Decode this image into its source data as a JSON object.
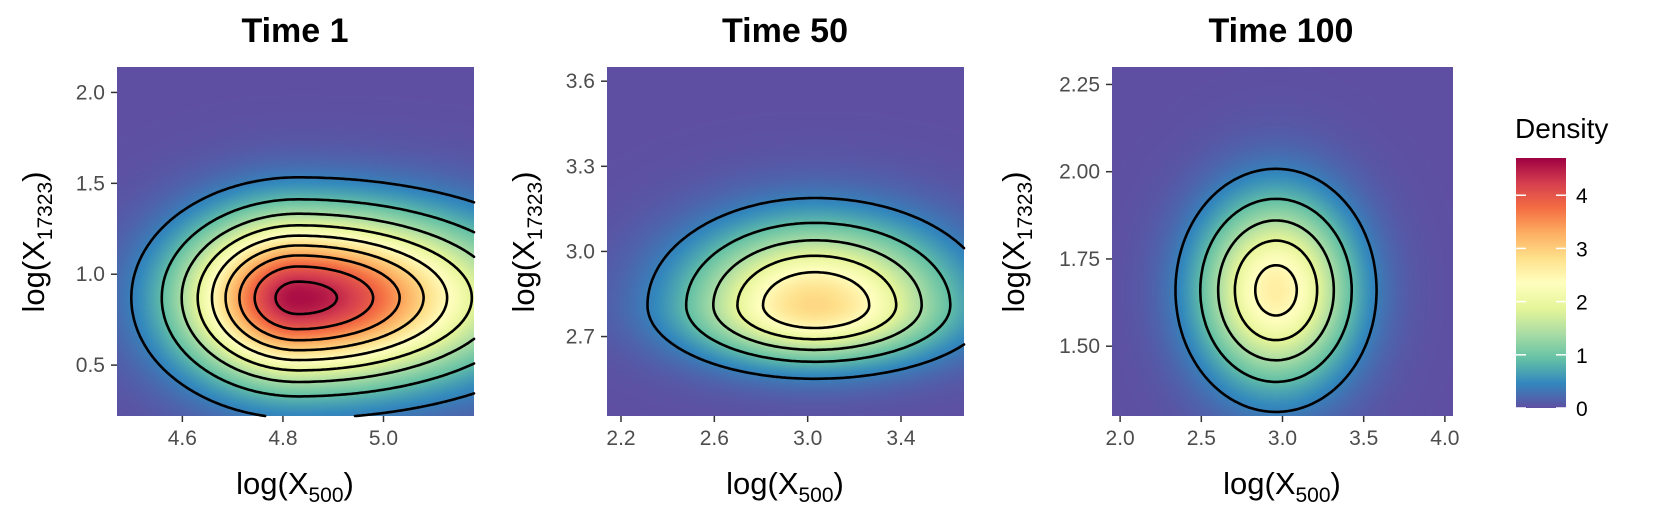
{
  "chart_data": [
    {
      "type": "heatmap",
      "title": "Time 1",
      "xlabel": {
        "base": "log(X",
        "sub": "500",
        "close": ")"
      },
      "ylabel": {
        "base": "log(X",
        "sub": "17323",
        "close": ")"
      },
      "xlim": [
        4.47,
        5.18
      ],
      "ylim": [
        0.22,
        2.14
      ],
      "xticks": [
        4.6,
        4.8,
        5.0
      ],
      "xtick_labels": [
        "4.6",
        "4.8",
        "5.0"
      ],
      "yticks": [
        0.5,
        1.0,
        1.5,
        2.0
      ],
      "ytick_labels": [
        "0.5",
        "1.0",
        "1.5",
        "2.0"
      ],
      "peak": {
        "x": 4.83,
        "y": 0.87,
        "density": 4.6
      },
      "spread": {
        "sx_left": 0.15,
        "sx_right": 0.26,
        "sy": 0.3
      },
      "contour_levels": [
        0.4,
        0.9,
        1.4,
        1.9,
        2.4,
        2.9,
        3.4,
        3.9,
        4.4
      ]
    },
    {
      "type": "heatmap",
      "title": "Time 50",
      "xlabel": {
        "base": "log(X",
        "sub": "500",
        "close": ")"
      },
      "ylabel": {
        "base": "log(X",
        "sub": "17323",
        "close": ")"
      },
      "xlim": [
        2.14,
        3.67
      ],
      "ylim": [
        2.42,
        3.65
      ],
      "xticks": [
        2.2,
        2.6,
        3.0,
        3.4
      ],
      "xtick_labels": [
        "2.2",
        "2.6",
        "3.0",
        "3.4"
      ],
      "yticks": [
        2.7,
        3.0,
        3.3,
        3.6
      ],
      "ytick_labels": [
        "2.7",
        "3.0",
        "3.3",
        "3.6"
      ],
      "peak": {
        "x": 3.03,
        "y": 2.81,
        "density": 2.9
      },
      "spread": {
        "sx_left": 0.36,
        "sx_right": 0.38,
        "sy_down": 0.13,
        "sy_up": 0.19
      },
      "contour_levels": [
        0.4,
        0.9,
        1.4,
        1.9,
        2.4
      ]
    },
    {
      "type": "heatmap",
      "title": "Time 100",
      "xlabel": {
        "base": "log(X",
        "sub": "500",
        "close": ")"
      },
      "ylabel": {
        "base": "log(X",
        "sub": "17323",
        "close": ")"
      },
      "xlim": [
        1.95,
        4.05
      ],
      "ylim": [
        1.3,
        2.3
      ],
      "xticks": [
        2.0,
        2.5,
        3.0,
        3.5,
        4.0
      ],
      "xtick_labels": [
        "2.0",
        "2.5",
        "3.0",
        "3.5",
        "4.0"
      ],
      "yticks": [
        1.5,
        1.75,
        2.0,
        2.25
      ],
      "ytick_labels": [
        "1.50",
        "1.75",
        "2.00",
        "2.25"
      ],
      "peak": {
        "x": 2.96,
        "y": 1.66,
        "density": 2.6
      },
      "spread": {
        "sx": 0.32,
        "sy": 0.18
      },
      "contour_levels": [
        0.4,
        0.9,
        1.4,
        1.9,
        2.4
      ]
    }
  ],
  "legend": {
    "title": "Density",
    "min": 0,
    "max": 4.7,
    "ticks": [
      0,
      1,
      2,
      3,
      4
    ],
    "tick_labels": [
      "0",
      "1",
      "2",
      "3",
      "4"
    ],
    "colormap": "Spectral (reversed)",
    "colors": [
      "#5e4fa2",
      "#3288bd",
      "#66c2a5",
      "#abdda4",
      "#e6f598",
      "#ffffbf",
      "#fee08b",
      "#fdae61",
      "#f46d43",
      "#d53e4f",
      "#9e0142"
    ],
    "placement": "right"
  },
  "colors": {
    "contour": "#000000",
    "background_low": "#5e4fa2"
  }
}
